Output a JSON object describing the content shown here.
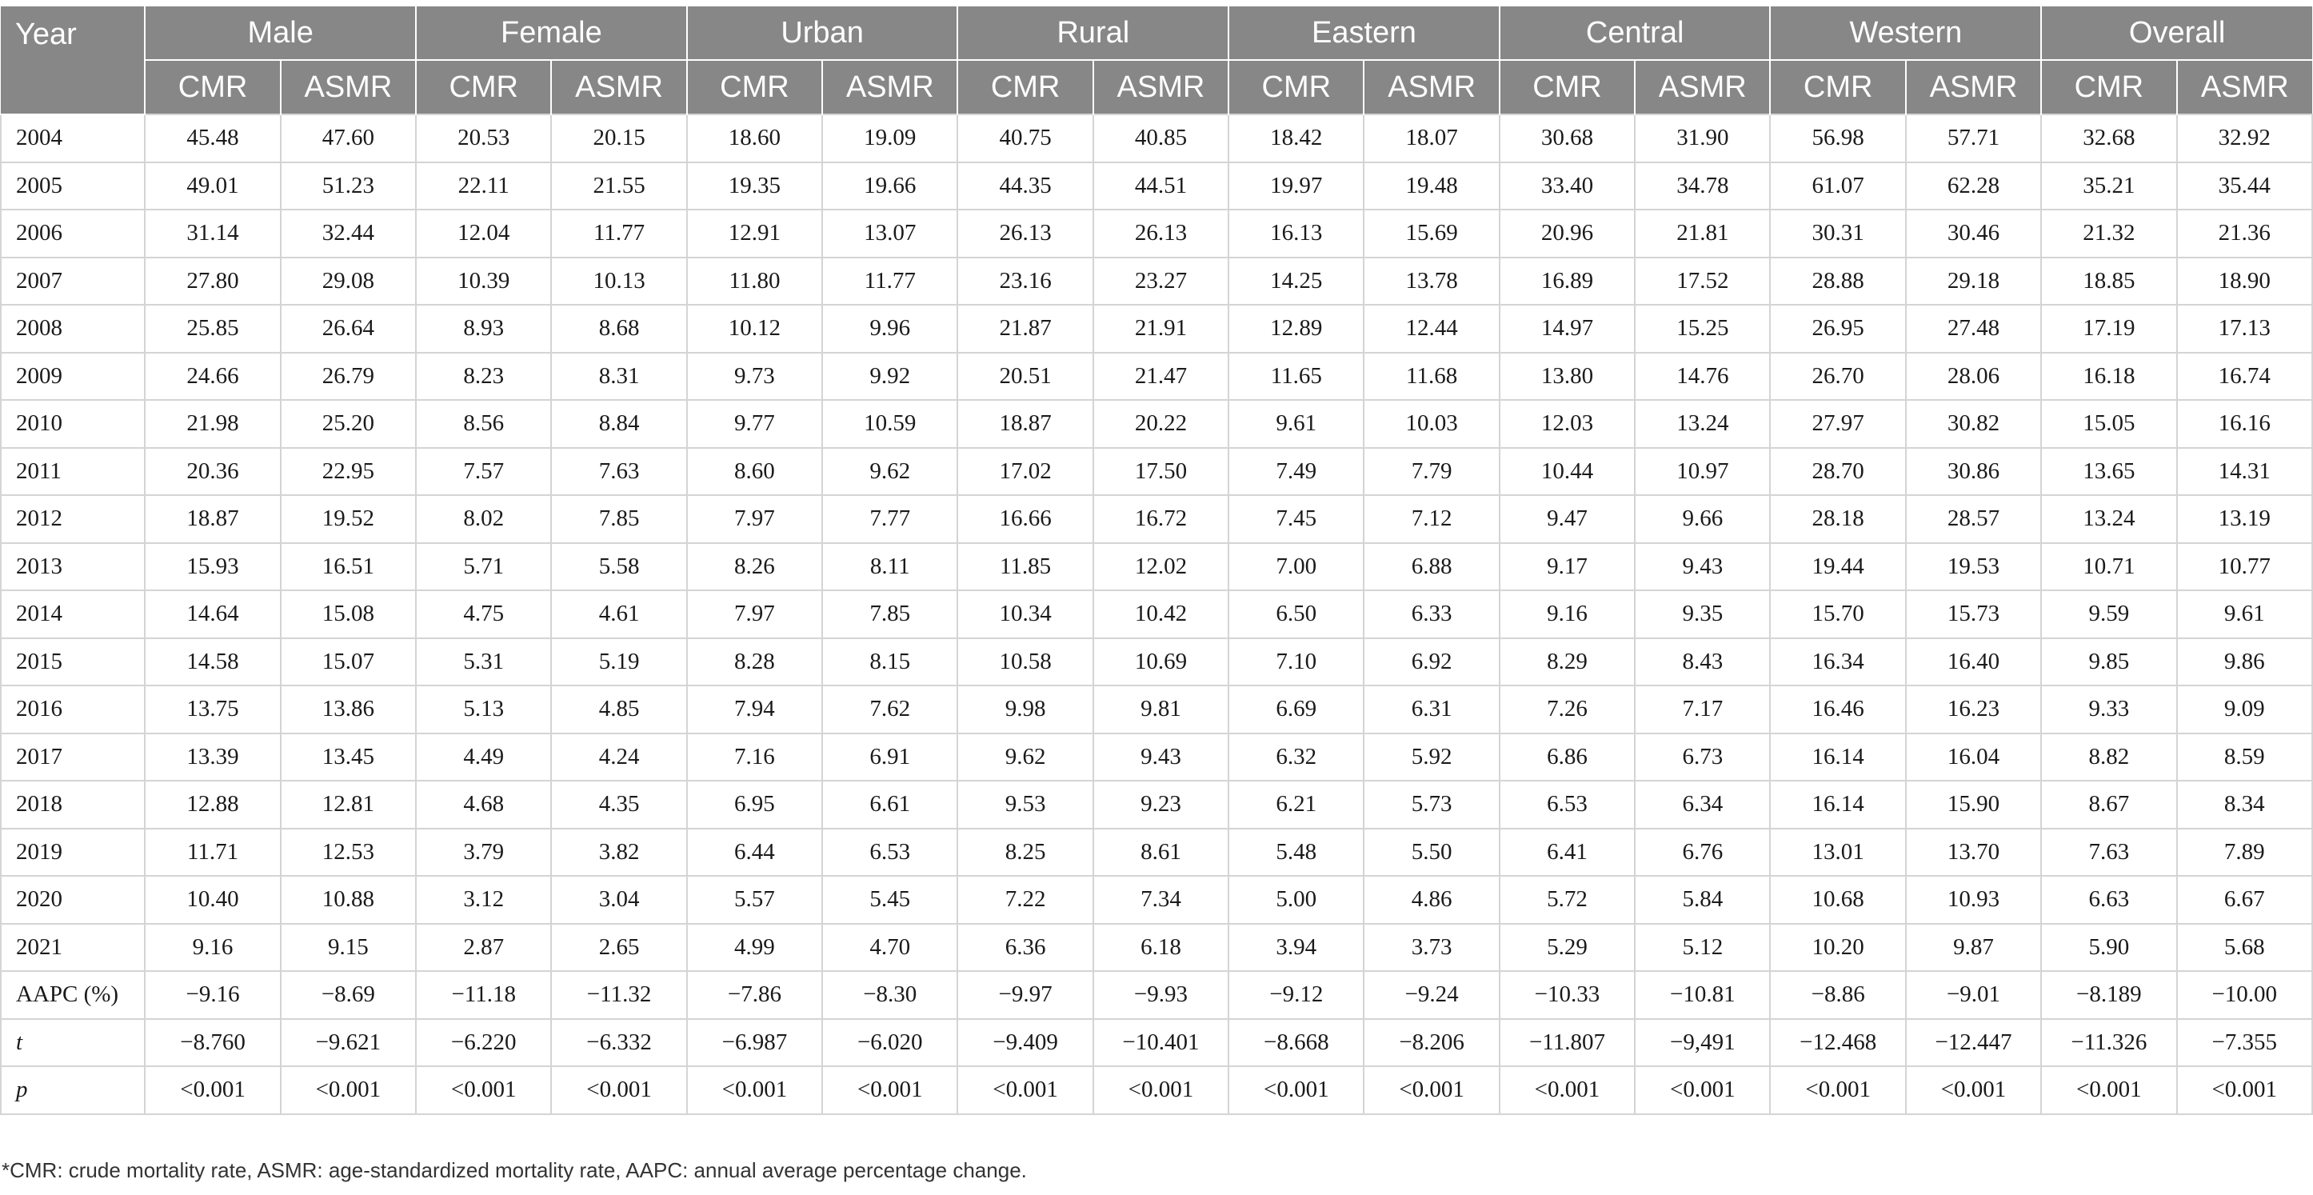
{
  "header": {
    "year_label": "Year",
    "groups": [
      "Male",
      "Female",
      "Urban",
      "Rural",
      "Eastern",
      "Central",
      "Western",
      "Overall"
    ],
    "sub": [
      "CMR",
      "ASMR"
    ]
  },
  "rows": [
    {
      "year": "2004",
      "values": [
        "45.48",
        "47.60",
        "20.53",
        "20.15",
        "18.60",
        "19.09",
        "40.75",
        "40.85",
        "18.42",
        "18.07",
        "30.68",
        "31.90",
        "56.98",
        "57.71",
        "32.68",
        "32.92"
      ]
    },
    {
      "year": "2005",
      "values": [
        "49.01",
        "51.23",
        "22.11",
        "21.55",
        "19.35",
        "19.66",
        "44.35",
        "44.51",
        "19.97",
        "19.48",
        "33.40",
        "34.78",
        "61.07",
        "62.28",
        "35.21",
        "35.44"
      ]
    },
    {
      "year": "2006",
      "values": [
        "31.14",
        "32.44",
        "12.04",
        "11.77",
        "12.91",
        "13.07",
        "26.13",
        "26.13",
        "16.13",
        "15.69",
        "20.96",
        "21.81",
        "30.31",
        "30.46",
        "21.32",
        "21.36"
      ]
    },
    {
      "year": "2007",
      "values": [
        "27.80",
        "29.08",
        "10.39",
        "10.13",
        "11.80",
        "11.77",
        "23.16",
        "23.27",
        "14.25",
        "13.78",
        "16.89",
        "17.52",
        "28.88",
        "29.18",
        "18.85",
        "18.90"
      ]
    },
    {
      "year": "2008",
      "values": [
        "25.85",
        "26.64",
        "8.93",
        "8.68",
        "10.12",
        "9.96",
        "21.87",
        "21.91",
        "12.89",
        "12.44",
        "14.97",
        "15.25",
        "26.95",
        "27.48",
        "17.19",
        "17.13"
      ]
    },
    {
      "year": "2009",
      "values": [
        "24.66",
        "26.79",
        "8.23",
        "8.31",
        "9.73",
        "9.92",
        "20.51",
        "21.47",
        "11.65",
        "11.68",
        "13.80",
        "14.76",
        "26.70",
        "28.06",
        "16.18",
        "16.74"
      ]
    },
    {
      "year": "2010",
      "values": [
        "21.98",
        "25.20",
        "8.56",
        "8.84",
        "9.77",
        "10.59",
        "18.87",
        "20.22",
        "9.61",
        "10.03",
        "12.03",
        "13.24",
        "27.97",
        "30.82",
        "15.05",
        "16.16"
      ]
    },
    {
      "year": "2011",
      "values": [
        "20.36",
        "22.95",
        "7.57",
        "7.63",
        "8.60",
        "9.62",
        "17.02",
        "17.50",
        "7.49",
        "7.79",
        "10.44",
        "10.97",
        "28.70",
        "30.86",
        "13.65",
        "14.31"
      ]
    },
    {
      "year": "2012",
      "values": [
        "18.87",
        "19.52",
        "8.02",
        "7.85",
        "7.97",
        "7.77",
        "16.66",
        "16.72",
        "7.45",
        "7.12",
        "9.47",
        "9.66",
        "28.18",
        "28.57",
        "13.24",
        "13.19"
      ]
    },
    {
      "year": "2013",
      "values": [
        "15.93",
        "16.51",
        "5.71",
        "5.58",
        "8.26",
        "8.11",
        "11.85",
        "12.02",
        "7.00",
        "6.88",
        "9.17",
        "9.43",
        "19.44",
        "19.53",
        "10.71",
        "10.77"
      ]
    },
    {
      "year": "2014",
      "values": [
        "14.64",
        "15.08",
        "4.75",
        "4.61",
        "7.97",
        "7.85",
        "10.34",
        "10.42",
        "6.50",
        "6.33",
        "9.16",
        "9.35",
        "15.70",
        "15.73",
        "9.59",
        "9.61"
      ]
    },
    {
      "year": "2015",
      "values": [
        "14.58",
        "15.07",
        "5.31",
        "5.19",
        "8.28",
        "8.15",
        "10.58",
        "10.69",
        "7.10",
        "6.92",
        "8.29",
        "8.43",
        "16.34",
        "16.40",
        "9.85",
        "9.86"
      ]
    },
    {
      "year": "2016",
      "values": [
        "13.75",
        "13.86",
        "5.13",
        "4.85",
        "7.94",
        "7.62",
        "9.98",
        "9.81",
        "6.69",
        "6.31",
        "7.26",
        "7.17",
        "16.46",
        "16.23",
        "9.33",
        "9.09"
      ]
    },
    {
      "year": "2017",
      "values": [
        "13.39",
        "13.45",
        "4.49",
        "4.24",
        "7.16",
        "6.91",
        "9.62",
        "9.43",
        "6.32",
        "5.92",
        "6.86",
        "6.73",
        "16.14",
        "16.04",
        "8.82",
        "8.59"
      ]
    },
    {
      "year": "2018",
      "values": [
        "12.88",
        "12.81",
        "4.68",
        "4.35",
        "6.95",
        "6.61",
        "9.53",
        "9.23",
        "6.21",
        "5.73",
        "6.53",
        "6.34",
        "16.14",
        "15.90",
        "8.67",
        "8.34"
      ]
    },
    {
      "year": "2019",
      "values": [
        "11.71",
        "12.53",
        "3.79",
        "3.82",
        "6.44",
        "6.53",
        "8.25",
        "8.61",
        "5.48",
        "5.50",
        "6.41",
        "6.76",
        "13.01",
        "13.70",
        "7.63",
        "7.89"
      ]
    },
    {
      "year": "2020",
      "values": [
        "10.40",
        "10.88",
        "3.12",
        "3.04",
        "5.57",
        "5.45",
        "7.22",
        "7.34",
        "5.00",
        "4.86",
        "5.72",
        "5.84",
        "10.68",
        "10.93",
        "6.63",
        "6.67"
      ]
    },
    {
      "year": "2021",
      "values": [
        "9.16",
        "9.15",
        "2.87",
        "2.65",
        "4.99",
        "4.70",
        "6.36",
        "6.18",
        "3.94",
        "3.73",
        "5.29",
        "5.12",
        "10.20",
        "9.87",
        "5.90",
        "5.68"
      ]
    },
    {
      "year": "AAPC (%)",
      "values": [
        "−9.16",
        "−8.69",
        "−11.18",
        "−11.32",
        "−7.86",
        "−8.30",
        "−9.97",
        "−9.93",
        "−9.12",
        "−9.24",
        "−10.33",
        "−10.81",
        "−8.86",
        "−9.01",
        "−8.189",
        "−10.00"
      ]
    },
    {
      "year": "t",
      "italic": true,
      "values": [
        "−8.760",
        "−9.621",
        "−6.220",
        "−6.332",
        "−6.987",
        "−6.020",
        "−9.409",
        "−10.401",
        "−8.668",
        "−8.206",
        "−11.807",
        "−9,491",
        "−12.468",
        "−12.447",
        "−11.326",
        "−7.355"
      ]
    },
    {
      "year": "p",
      "italic": true,
      "values": [
        "<0.001",
        "<0.001",
        "<0.001",
        "<0.001",
        "<0.001",
        "<0.001",
        "<0.001",
        "<0.001",
        "<0.001",
        "<0.001",
        "<0.001",
        "<0.001",
        "<0.001",
        "<0.001",
        "<0.001",
        "<0.001"
      ]
    }
  ],
  "footnote": "*CMR: crude mortality rate, ASMR: age-standardized mortality rate, AAPC: annual average percentage change.",
  "colors": {
    "header_bg": "#878787",
    "header_text": "#ffffff",
    "grid": "#d4d4d4"
  }
}
